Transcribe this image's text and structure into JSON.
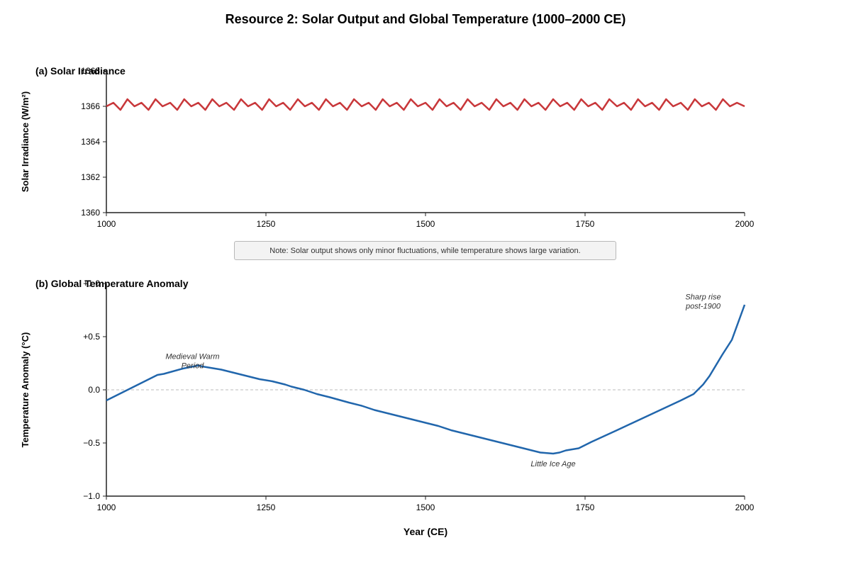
{
  "title": "Resource 2: Solar Output and Global Temperature (1000–2000 CE)",
  "note": "Note: Solar output shows only minor fluctuations, while temperature shows large variation.",
  "colors": {
    "solar": "#c8373a",
    "temperature": "#2166ac",
    "zero_line": "#bbbbbb",
    "axis": "#222222"
  },
  "chart_data": [
    {
      "type": "line",
      "panel_label": "(a) Solar Irradiance",
      "ylabel": "Solar Irradiance (W/m²)",
      "xlabel": "",
      "xlim": [
        1000,
        2000
      ],
      "ylim": [
        1360,
        1368
      ],
      "xticks": [
        1000,
        1250,
        1500,
        1750,
        2000
      ],
      "xtick_labels": [
        "1000",
        "1250",
        "1500",
        "1750",
        "2000"
      ],
      "yticks": [
        1360,
        1362,
        1364,
        1366,
        1368
      ],
      "ytick_labels": [
        "1360",
        "1362",
        "1364",
        "1366",
        "1368"
      ],
      "grid": false,
      "series": [
        {
          "x": [
            1000,
            1011,
            1022,
            1033,
            1044,
            1055,
            1066,
            1077,
            1088,
            1100,
            1111,
            1122,
            1133,
            1144,
            1155,
            1166,
            1177,
            1188,
            1200,
            1211,
            1222,
            1233,
            1244,
            1255,
            1266,
            1277,
            1288,
            1300,
            1311,
            1322,
            1333,
            1344,
            1355,
            1366,
            1377,
            1388,
            1400,
            1411,
            1422,
            1433,
            1444,
            1455,
            1466,
            1477,
            1488,
            1500,
            1511,
            1522,
            1533,
            1544,
            1555,
            1566,
            1577,
            1588,
            1600,
            1611,
            1622,
            1633,
            1644,
            1655,
            1666,
            1677,
            1688,
            1700,
            1711,
            1722,
            1733,
            1744,
            1755,
            1766,
            1777,
            1788,
            1800,
            1811,
            1822,
            1833,
            1844,
            1855,
            1866,
            1877,
            1888,
            1900,
            1911,
            1922,
            1933,
            1944,
            1955,
            1966,
            1977,
            1988,
            2000
          ],
          "y": [
            1366.0,
            1366.2,
            1365.8,
            1366.4,
            1366.0,
            1366.2,
            1365.8,
            1366.4,
            1366.0,
            1366.2,
            1365.8,
            1366.4,
            1366.0,
            1366.2,
            1365.8,
            1366.4,
            1366.0,
            1366.2,
            1365.8,
            1366.4,
            1366.0,
            1366.2,
            1365.8,
            1366.4,
            1366.0,
            1366.2,
            1365.8,
            1366.4,
            1366.0,
            1366.2,
            1365.8,
            1366.4,
            1366.0,
            1366.2,
            1365.8,
            1366.4,
            1366.0,
            1366.2,
            1365.8,
            1366.4,
            1366.0,
            1366.2,
            1365.8,
            1366.4,
            1366.0,
            1366.2,
            1365.8,
            1366.4,
            1366.0,
            1366.2,
            1365.8,
            1366.4,
            1366.0,
            1366.2,
            1365.8,
            1366.4,
            1366.0,
            1366.2,
            1365.8,
            1366.4,
            1366.0,
            1366.2,
            1365.8,
            1366.4,
            1366.0,
            1366.2,
            1365.8,
            1366.4,
            1366.0,
            1366.2,
            1365.8,
            1366.4,
            1366.0,
            1366.2,
            1365.8,
            1366.4,
            1366.0,
            1366.2,
            1365.8,
            1366.4,
            1366.0,
            1366.2,
            1365.8,
            1366.4,
            1366.0,
            1366.2,
            1365.8,
            1366.4,
            1366.0,
            1366.2,
            1366.0
          ]
        }
      ]
    },
    {
      "type": "line",
      "panel_label": "(b) Global Temperature Anomaly",
      "ylabel": "Temperature Anomaly (°C)",
      "xlabel": "Year (CE)",
      "xlim": [
        1000,
        2000
      ],
      "ylim": [
        -1.0,
        1.0
      ],
      "xticks": [
        1000,
        1250,
        1500,
        1750,
        2000
      ],
      "xtick_labels": [
        "1000",
        "1250",
        "1500",
        "1750",
        "2000"
      ],
      "yticks": [
        -1.0,
        -0.5,
        0.0,
        0.5,
        1.0
      ],
      "ytick_labels": [
        "−1.0",
        "−0.5",
        "0.0",
        "+0.5",
        "+1.0"
      ],
      "grid": false,
      "reference_line": 0.0,
      "series": [
        {
          "x": [
            1000,
            1040,
            1080,
            1090,
            1120,
            1145,
            1150,
            1180,
            1200,
            1220,
            1240,
            1260,
            1280,
            1290,
            1310,
            1330,
            1350,
            1380,
            1400,
            1420,
            1440,
            1460,
            1480,
            1500,
            1520,
            1540,
            1560,
            1580,
            1600,
            1620,
            1640,
            1660,
            1680,
            1700,
            1710,
            1720,
            1740,
            1750,
            1760,
            1800,
            1850,
            1900,
            1920,
            1935,
            1945,
            1965,
            1980,
            2000
          ],
          "y": [
            -0.1,
            0.02,
            0.14,
            0.15,
            0.2,
            0.23,
            0.22,
            0.19,
            0.16,
            0.13,
            0.1,
            0.08,
            0.05,
            0.03,
            0.0,
            -0.04,
            -0.07,
            -0.12,
            -0.15,
            -0.19,
            -0.22,
            -0.25,
            -0.28,
            -0.31,
            -0.34,
            -0.38,
            -0.41,
            -0.44,
            -0.47,
            -0.5,
            -0.53,
            -0.56,
            -0.59,
            -0.6,
            -0.59,
            -0.57,
            -0.55,
            -0.52,
            -0.49,
            -0.38,
            -0.24,
            -0.1,
            -0.04,
            0.05,
            0.13,
            0.33,
            0.47,
            0.8
          ]
        }
      ],
      "annotations": [
        {
          "text": [
            "Medieval Warm",
            "Period"
          ],
          "x": 1135,
          "y": 0.29
        },
        {
          "text": [
            "Little Ice Age"
          ],
          "x": 1700,
          "y": -0.72
        },
        {
          "text": [
            "Sharp rise",
            "post-1900"
          ],
          "x": 1935,
          "y": 0.85
        }
      ]
    }
  ]
}
